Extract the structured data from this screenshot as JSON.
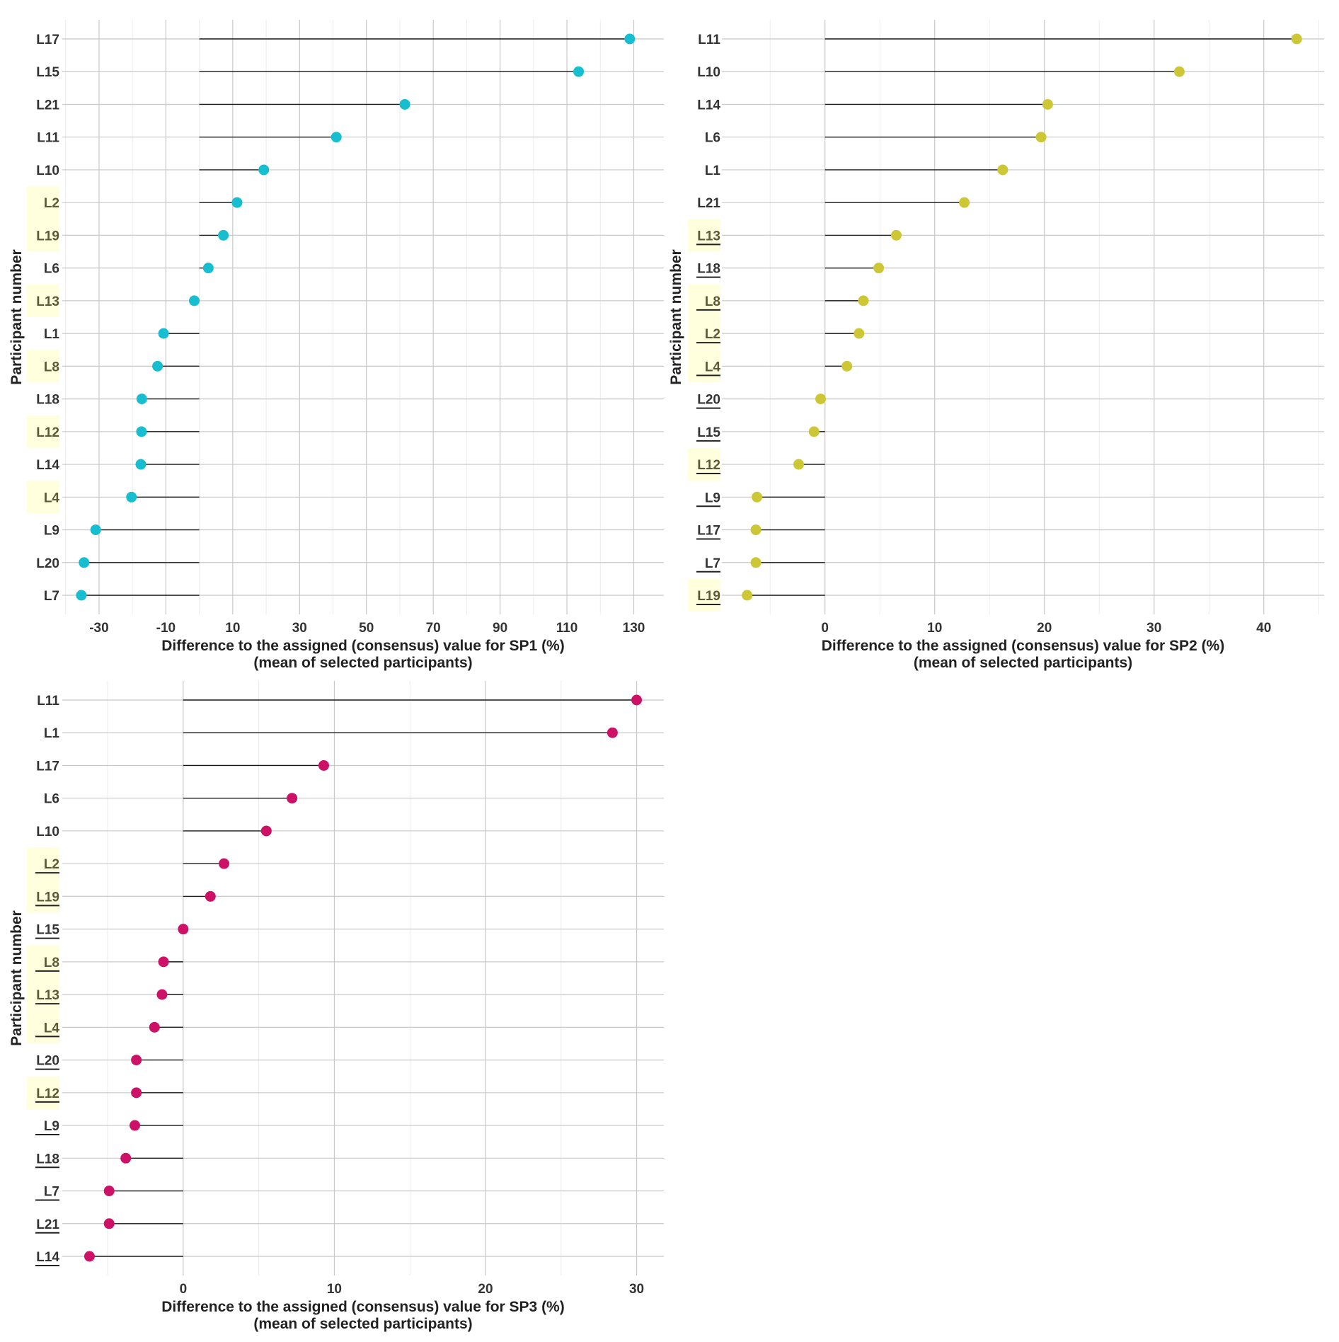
{
  "chart_data": [
    {
      "type": "lollipop",
      "series_name": "SP1",
      "xlabel": "Difference to the assigned (consensus) value for SP1 (%)",
      "xlabel2": "(mean of selected participants)",
      "ylabel": "Participant number",
      "xlim": [
        -41,
        139
      ],
      "baseline": 0,
      "xticks": [
        -30,
        -10,
        10,
        30,
        50,
        70,
        90,
        110,
        130
      ],
      "color": "#17becf",
      "highlight_color": "#ffffdd",
      "categories": [
        "L17",
        "L15",
        "L21",
        "L11",
        "L10",
        "L2",
        "L19",
        "L6",
        "L13",
        "L1",
        "L8",
        "L18",
        "L12",
        "L14",
        "L4",
        "L9",
        "L20",
        "L7"
      ],
      "values": [
        128.8,
        113.5,
        61.5,
        41.0,
        19.3,
        11.3,
        7.2,
        2.7,
        -1.5,
        -10.7,
        -12.5,
        -17.2,
        -17.3,
        -17.5,
        -20.3,
        -31.0,
        -34.5,
        -35.3
      ],
      "highlighted": [
        "L2",
        "L19",
        "L13",
        "L8",
        "L12",
        "L4"
      ],
      "underlined": []
    },
    {
      "type": "lollipop",
      "series_name": "SP2",
      "xlabel": "Difference to the assigned (consensus) value for SP2 (%)",
      "xlabel2": "(mean of selected participants)",
      "ylabel": "Participant number",
      "xlim": [
        -9.4,
        45.5
      ],
      "baseline": 0,
      "xticks": [
        0,
        10,
        20,
        30,
        40
      ],
      "color": "#cdc735",
      "highlight_color": "#ffffdd",
      "categories": [
        "L11",
        "L10",
        "L14",
        "L6",
        "L1",
        "L21",
        "L13",
        "L18",
        "L8",
        "L2",
        "L4",
        "L20",
        "L15",
        "L12",
        "L9",
        "L17",
        "L7",
        "L19"
      ],
      "values": [
        43.0,
        32.3,
        20.3,
        19.7,
        16.2,
        12.7,
        6.5,
        4.9,
        3.5,
        3.1,
        2.0,
        -0.4,
        -1.0,
        -2.4,
        -6.2,
        -6.3,
        -6.3,
        -7.1
      ],
      "highlighted": [
        "L13",
        "L8",
        "L2",
        "L4",
        "L12",
        "L19"
      ],
      "underlined": [
        "L13",
        "L18",
        "L8",
        "L2",
        "L4",
        "L20",
        "L15",
        "L12",
        "L9",
        "L17",
        "L7",
        "L19"
      ]
    },
    {
      "type": "lollipop",
      "series_name": "SP3",
      "xlabel": "Difference to the assigned (consensus) value for SP3 (%)",
      "xlabel2": "(mean of selected participants)",
      "ylabel": "Participant number",
      "xlim": [
        -8,
        31.8
      ],
      "baseline": 0,
      "xticks": [
        0,
        10,
        20,
        30
      ],
      "color": "#cc1166",
      "highlight_color": "#ffffdd",
      "categories": [
        "L11",
        "L1",
        "L17",
        "L6",
        "L10",
        "L2",
        "L19",
        "L15",
        "L8",
        "L13",
        "L4",
        "L20",
        "L12",
        "L9",
        "L18",
        "L7",
        "L21",
        "L14"
      ],
      "values": [
        30.0,
        28.4,
        9.3,
        7.2,
        5.5,
        2.7,
        1.8,
        0.0,
        -1.3,
        -1.4,
        -1.9,
        -3.1,
        -3.1,
        -3.2,
        -3.8,
        -4.9,
        -4.9,
        -6.2
      ],
      "highlighted": [
        "L2",
        "L19",
        "L8",
        "L13",
        "L4",
        "L12"
      ],
      "underlined": [
        "L2",
        "L19",
        "L15",
        "L8",
        "L13",
        "L4",
        "L20",
        "L12",
        "L9",
        "L18",
        "L7",
        "L21",
        "L14"
      ]
    }
  ]
}
